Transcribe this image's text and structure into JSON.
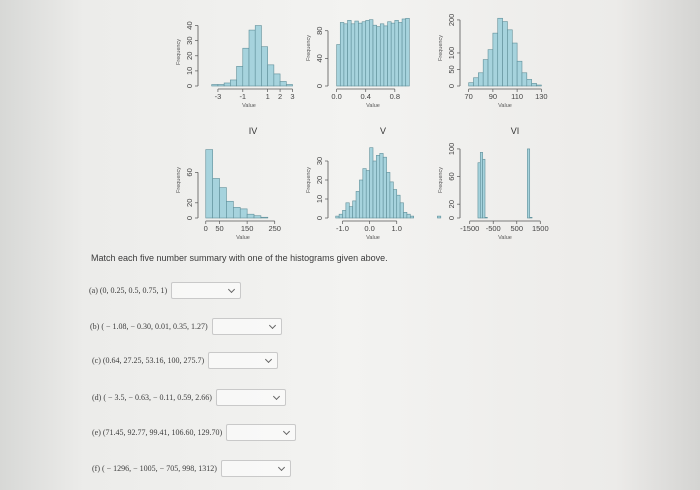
{
  "chart_data": [
    {
      "type": "bar",
      "panel": "",
      "bin_edges": [
        -4.0,
        -3.5,
        -3.0,
        -2.5,
        -2.0,
        -1.5,
        -1.0,
        -0.5,
        0.0,
        0.5,
        1.0,
        1.5,
        2.0,
        2.5,
        3.0
      ],
      "values": [
        0,
        1,
        1,
        2,
        4,
        13,
        25,
        37,
        40,
        26,
        14,
        8,
        3,
        1
      ],
      "xlim": [
        -4.2,
        3.2
      ],
      "ylim": [
        0,
        45
      ],
      "xticks": [
        -3,
        -1,
        1,
        2,
        3
      ],
      "xtick_labels": [
        "-3",
        "-1",
        "1",
        "2",
        "3"
      ],
      "yticks": [
        0,
        10,
        20,
        30,
        40
      ],
      "ytick_labels": [
        "0",
        "10",
        "20",
        "30",
        "40"
      ],
      "xlabel": "Value",
      "ylabel": "Frequency"
    },
    {
      "type": "bar",
      "panel": "",
      "bin_edges": [
        0.0,
        0.05,
        0.1,
        0.15,
        0.2,
        0.25,
        0.3,
        0.35,
        0.4,
        0.45,
        0.5,
        0.55,
        0.6,
        0.65,
        0.7,
        0.75,
        0.8,
        0.85,
        0.9,
        0.95,
        1.0
      ],
      "values": [
        60,
        92,
        90,
        95,
        90,
        94,
        91,
        93,
        95,
        96,
        88,
        86,
        90,
        87,
        93,
        91,
        95,
        92,
        97,
        98
      ],
      "xlim": [
        -0.05,
        1.05
      ],
      "ylim": [
        0,
        110
      ],
      "xticks": [
        0.0,
        0.4,
        0.8
      ],
      "xtick_labels": [
        "0.0",
        "0.4",
        "0.8"
      ],
      "yticks": [
        0,
        40,
        80
      ],
      "ytick_labels": [
        "0",
        "40",
        "80"
      ],
      "xlabel": "Value",
      "ylabel": "Frequency"
    },
    {
      "type": "bar",
      "panel": "",
      "bin_edges": [
        70,
        74,
        78,
        82,
        86,
        90,
        94,
        98,
        102,
        106,
        110,
        114,
        118,
        122,
        126,
        130
      ],
      "values": [
        10,
        25,
        40,
        80,
        110,
        160,
        205,
        195,
        170,
        130,
        75,
        40,
        20,
        8,
        3
      ],
      "xlim": [
        67,
        133
      ],
      "ylim": [
        0,
        230
      ],
      "xticks": [
        70,
        90,
        110,
        130
      ],
      "xtick_labels": [
        "70",
        "90",
        "110",
        "130"
      ],
      "yticks": [
        0,
        50,
        100,
        200
      ],
      "ytick_labels": [
        "0",
        "50",
        "100",
        "200"
      ],
      "xlabel": "Value",
      "ylabel": "Frequency"
    },
    {
      "type": "bar",
      "panel": "IV",
      "bin_edges": [
        0,
        25,
        50,
        75,
        100,
        125,
        150,
        175,
        200,
        225,
        250
      ],
      "values": [
        90,
        52,
        40,
        22,
        14,
        12,
        5,
        3,
        1,
        0
      ],
      "xlim": [
        -10,
        280
      ],
      "ylim": [
        0,
        100
      ],
      "xticks": [
        0,
        50,
        150,
        250
      ],
      "xtick_labels": [
        "0",
        "50",
        "150",
        "250"
      ],
      "yticks": [
        0,
        20,
        60
      ],
      "ytick_labels": [
        "0",
        "20",
        "60"
      ],
      "xlabel": "Value",
      "ylabel": "Frequency"
    },
    {
      "type": "bar",
      "panel": "V",
      "bin_edges": [
        -1.25,
        -1.125,
        -1.0,
        -0.875,
        -0.75,
        -0.625,
        -0.5,
        -0.375,
        -0.25,
        -0.125,
        0.0,
        0.125,
        0.25,
        0.375,
        0.5,
        0.625,
        0.75,
        0.875,
        1.0,
        1.125,
        1.25,
        1.375,
        1.5,
        1.625,
        1.75,
        1.875,
        2.0,
        2.125,
        2.25,
        2.375,
        2.5,
        2.625
      ],
      "values": [
        1,
        2,
        4,
        8,
        6,
        9,
        14,
        20,
        26,
        25,
        37,
        30,
        33,
        34,
        32,
        24,
        19,
        15,
        12,
        8,
        3,
        2,
        1,
        0,
        0,
        0,
        0,
        0,
        0,
        0,
        1
      ],
      "xlim": [
        -1.35,
        1.6
      ],
      "ylim": [
        0,
        40
      ],
      "xticks": [
        -1.0,
        0.0,
        1.0
      ],
      "xtick_labels": [
        "-1.0",
        "0.0",
        "1.0"
      ],
      "yticks": [
        0,
        10,
        20,
        30
      ],
      "ytick_labels": [
        "0",
        "10",
        "20",
        "30"
      ],
      "xlabel": "Value",
      "ylabel": "Frequency"
    },
    {
      "type": "bar",
      "panel": "VI",
      "bin_edges": [
        -1350,
        -1250,
        -1150,
        -1050,
        -950,
        -850,
        -750,
        -650,
        -550,
        -450,
        -350,
        -250,
        -150,
        -50,
        50,
        150,
        250,
        350,
        450,
        550,
        650,
        750,
        850,
        950,
        1050,
        1150,
        1250,
        1350
      ],
      "values": [
        0,
        0,
        80,
        95,
        85,
        1,
        0,
        0,
        0,
        0,
        0,
        0,
        0,
        0,
        0,
        0,
        0,
        0,
        0,
        0,
        0,
        0,
        0,
        100,
        1,
        0,
        0
      ],
      "xlim": [
        -1700,
        1700
      ],
      "ylim": [
        0,
        110
      ],
      "xticks": [
        -1500,
        -500,
        500,
        1500
      ],
      "xtick_labels": [
        "-1500",
        "-500",
        "500",
        "1500"
      ],
      "yticks": [
        0,
        20,
        60,
        100
      ],
      "ytick_labels": [
        "0",
        "20",
        "60",
        "100"
      ],
      "xlabel": "Value",
      "ylabel": "Frequency"
    }
  ],
  "instruction": "Match each five number summary with one of the histograms given above.",
  "questions": [
    {
      "label": "(a) (0, 0.25, 0.5, 0.75, 1)",
      "value": ""
    },
    {
      "label": "(b) ( − 1.08,  − 0.30, 0.01, 0.35, 1.27)",
      "value": ""
    },
    {
      "label": "(c) (0.64, 27.25, 53.16, 100, 275.7)",
      "value": ""
    },
    {
      "label": "(d) ( − 3.5,  − 0.63,  − 0.11, 0.59, 2.66)",
      "value": ""
    },
    {
      "label": "(e) (71.45, 92.77, 99.41, 106.60, 129.70)",
      "value": ""
    },
    {
      "label": "(f) ( − 1296,  − 1005,  − 705, 998, 1312)",
      "value": ""
    }
  ],
  "colors": {
    "bar_fill": "#a6d3dd",
    "bar_edge": "#5f8f99"
  }
}
